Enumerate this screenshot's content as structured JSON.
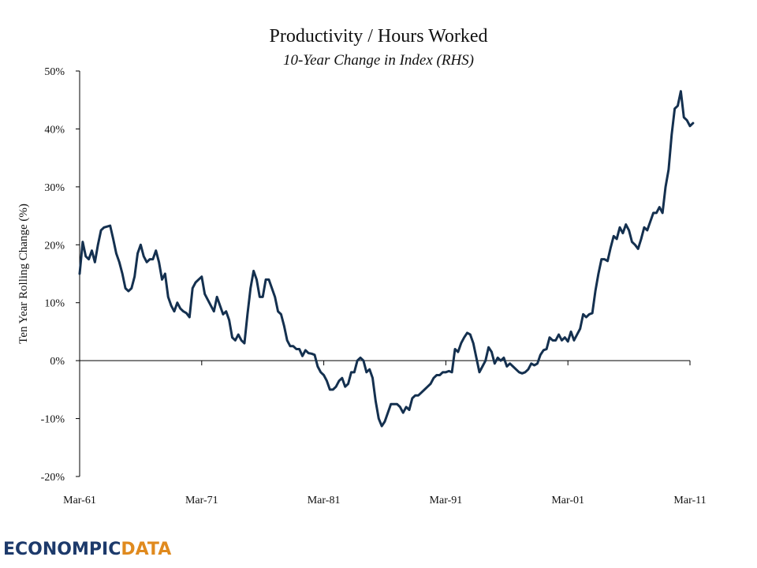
{
  "chart_data": {
    "type": "line",
    "title": "Productivity / Hours Worked",
    "subtitle": "10-Year Change in Index (RHS)",
    "ylabel": "Ten Year Rolling Change (%)",
    "xlabel": "",
    "ylim": [
      -20,
      50
    ],
    "yticks": [
      50,
      40,
      30,
      20,
      10,
      0,
      -10,
      -20
    ],
    "ytick_labels": [
      "50%",
      "40%",
      "30%",
      "20%",
      "10%",
      "0%",
      "-10%",
      "-20%"
    ],
    "xlim": [
      1961.0,
      2011.0
    ],
    "xticks": [
      1961,
      1971,
      1981,
      1991,
      2001,
      2011
    ],
    "xtick_labels": [
      "Mar-61",
      "Mar-71",
      "Mar-81",
      "Mar-91",
      "Mar-01",
      "Mar-11"
    ],
    "grid": false,
    "line_color": "#14304f",
    "series": [
      {
        "name": "",
        "points": [
          [
            1961.0,
            15.0
          ],
          [
            1961.25,
            20.5
          ],
          [
            1961.5,
            18.0
          ],
          [
            1961.75,
            17.5
          ],
          [
            1962.0,
            19.0
          ],
          [
            1962.25,
            17.0
          ],
          [
            1962.5,
            20.0
          ],
          [
            1962.75,
            22.5
          ],
          [
            1963.0,
            23.0
          ],
          [
            1963.5,
            23.3
          ],
          [
            1963.75,
            21.0
          ],
          [
            1964.0,
            18.5
          ],
          [
            1964.25,
            17.0
          ],
          [
            1964.5,
            15.0
          ],
          [
            1964.75,
            12.5
          ],
          [
            1965.0,
            12.0
          ],
          [
            1965.25,
            12.5
          ],
          [
            1965.5,
            14.5
          ],
          [
            1965.75,
            18.5
          ],
          [
            1966.0,
            20.0
          ],
          [
            1966.25,
            18.0
          ],
          [
            1966.5,
            17.0
          ],
          [
            1966.75,
            17.5
          ],
          [
            1967.0,
            17.5
          ],
          [
            1967.25,
            19.0
          ],
          [
            1967.5,
            17.0
          ],
          [
            1967.75,
            14.0
          ],
          [
            1968.0,
            15.0
          ],
          [
            1968.25,
            11.0
          ],
          [
            1968.5,
            9.5
          ],
          [
            1968.75,
            8.5
          ],
          [
            1969.0,
            10.0
          ],
          [
            1969.25,
            9.0
          ],
          [
            1969.5,
            8.5
          ],
          [
            1969.75,
            8.2
          ],
          [
            1970.0,
            7.5
          ],
          [
            1970.25,
            12.5
          ],
          [
            1970.5,
            13.5
          ],
          [
            1970.75,
            14.0
          ],
          [
            1971.0,
            14.5
          ],
          [
            1971.25,
            11.5
          ],
          [
            1971.5,
            10.5
          ],
          [
            1971.75,
            9.5
          ],
          [
            1972.0,
            8.5
          ],
          [
            1972.25,
            11.0
          ],
          [
            1972.5,
            9.5
          ],
          [
            1972.75,
            8.0
          ],
          [
            1973.0,
            8.5
          ],
          [
            1973.25,
            7.0
          ],
          [
            1973.5,
            4.0
          ],
          [
            1973.75,
            3.5
          ],
          [
            1974.0,
            4.5
          ],
          [
            1974.25,
            3.5
          ],
          [
            1974.5,
            3.0
          ],
          [
            1974.75,
            8.0
          ],
          [
            1975.0,
            12.5
          ],
          [
            1975.25,
            15.5
          ],
          [
            1975.5,
            14.0
          ],
          [
            1975.75,
            11.0
          ],
          [
            1976.0,
            11.0
          ],
          [
            1976.25,
            14.0
          ],
          [
            1976.5,
            14.0
          ],
          [
            1976.75,
            12.5
          ],
          [
            1977.0,
            11.0
          ],
          [
            1977.25,
            8.5
          ],
          [
            1977.5,
            8.0
          ],
          [
            1977.75,
            6.0
          ],
          [
            1978.0,
            3.5
          ],
          [
            1978.25,
            2.5
          ],
          [
            1978.5,
            2.5
          ],
          [
            1978.75,
            2.0
          ],
          [
            1979.0,
            2.0
          ],
          [
            1979.25,
            0.8
          ],
          [
            1979.5,
            1.8
          ],
          [
            1979.75,
            1.3
          ],
          [
            1980.0,
            1.2
          ],
          [
            1980.25,
            1.0
          ],
          [
            1980.5,
            -1.0
          ],
          [
            1980.75,
            -2.0
          ],
          [
            1981.0,
            -2.5
          ],
          [
            1981.25,
            -3.5
          ],
          [
            1981.5,
            -5.0
          ],
          [
            1981.75,
            -5.0
          ],
          [
            1982.0,
            -4.5
          ],
          [
            1982.25,
            -3.5
          ],
          [
            1982.5,
            -3.0
          ],
          [
            1982.75,
            -4.5
          ],
          [
            1983.0,
            -4.0
          ],
          [
            1983.25,
            -2.0
          ],
          [
            1983.5,
            -2.0
          ],
          [
            1983.75,
            0.0
          ],
          [
            1984.0,
            0.5
          ],
          [
            1984.25,
            0.0
          ],
          [
            1984.5,
            -2.0
          ],
          [
            1984.75,
            -1.5
          ],
          [
            1985.0,
            -3.0
          ],
          [
            1985.25,
            -7.0
          ],
          [
            1985.5,
            -10.0
          ],
          [
            1985.75,
            -11.3
          ],
          [
            1986.0,
            -10.5
          ],
          [
            1986.25,
            -9.0
          ],
          [
            1986.5,
            -7.5
          ],
          [
            1986.75,
            -7.5
          ],
          [
            1987.0,
            -7.5
          ],
          [
            1987.25,
            -8.0
          ],
          [
            1987.5,
            -9.0
          ],
          [
            1987.75,
            -8.0
          ],
          [
            1988.0,
            -8.5
          ],
          [
            1988.25,
            -6.5
          ],
          [
            1988.5,
            -6.0
          ],
          [
            1988.75,
            -6.0
          ],
          [
            1989.0,
            -5.5
          ],
          [
            1989.25,
            -5.0
          ],
          [
            1989.5,
            -4.5
          ],
          [
            1989.75,
            -4.0
          ],
          [
            1990.0,
            -3.0
          ],
          [
            1990.25,
            -2.5
          ],
          [
            1990.5,
            -2.5
          ],
          [
            1990.75,
            -2.0
          ],
          [
            1991.0,
            -2.0
          ],
          [
            1991.25,
            -1.8
          ],
          [
            1991.5,
            -2.0
          ],
          [
            1991.75,
            2.0
          ],
          [
            1992.0,
            1.5
          ],
          [
            1992.25,
            3.0
          ],
          [
            1992.5,
            4.0
          ],
          [
            1992.75,
            4.8
          ],
          [
            1993.0,
            4.5
          ],
          [
            1993.25,
            3.0
          ],
          [
            1993.5,
            0.5
          ],
          [
            1993.75,
            -2.0
          ],
          [
            1994.0,
            -1.0
          ],
          [
            1994.25,
            0.0
          ],
          [
            1994.5,
            2.3
          ],
          [
            1994.75,
            1.5
          ],
          [
            1995.0,
            -0.5
          ],
          [
            1995.25,
            0.5
          ],
          [
            1995.5,
            0.0
          ],
          [
            1995.75,
            0.5
          ],
          [
            1996.0,
            -1.0
          ],
          [
            1996.25,
            -0.5
          ],
          [
            1996.5,
            -1.0
          ],
          [
            1996.75,
            -1.5
          ],
          [
            1997.0,
            -2.0
          ],
          [
            1997.25,
            -2.2
          ],
          [
            1997.5,
            -2.0
          ],
          [
            1997.75,
            -1.5
          ],
          [
            1998.0,
            -0.5
          ],
          [
            1998.25,
            -0.8
          ],
          [
            1998.5,
            -0.5
          ],
          [
            1998.75,
            1.0
          ],
          [
            1999.0,
            1.8
          ],
          [
            1999.25,
            2.0
          ],
          [
            1999.5,
            4.0
          ],
          [
            1999.75,
            3.5
          ],
          [
            2000.0,
            3.5
          ],
          [
            2000.25,
            4.5
          ],
          [
            2000.5,
            3.5
          ],
          [
            2000.75,
            4.0
          ],
          [
            2001.0,
            3.3
          ],
          [
            2001.25,
            5.0
          ],
          [
            2001.5,
            3.5
          ],
          [
            2001.75,
            4.5
          ],
          [
            2002.0,
            5.5
          ],
          [
            2002.25,
            8.0
          ],
          [
            2002.5,
            7.5
          ],
          [
            2002.75,
            8.0
          ],
          [
            2003.0,
            8.2
          ],
          [
            2003.25,
            12.0
          ],
          [
            2003.5,
            15.0
          ],
          [
            2003.75,
            17.5
          ],
          [
            2004.0,
            17.5
          ],
          [
            2004.25,
            17.2
          ],
          [
            2004.5,
            19.5
          ],
          [
            2004.75,
            21.5
          ],
          [
            2005.0,
            21.0
          ],
          [
            2005.25,
            23.0
          ],
          [
            2005.5,
            22.0
          ],
          [
            2005.75,
            23.5
          ],
          [
            2006.0,
            22.5
          ],
          [
            2006.25,
            20.5
          ],
          [
            2006.5,
            20.0
          ],
          [
            2006.75,
            19.3
          ],
          [
            2007.0,
            21.0
          ],
          [
            2007.25,
            23.0
          ],
          [
            2007.5,
            22.5
          ],
          [
            2007.75,
            24.0
          ],
          [
            2008.0,
            25.5
          ],
          [
            2008.25,
            25.5
          ],
          [
            2008.5,
            26.5
          ],
          [
            2008.75,
            25.5
          ],
          [
            2009.0,
            30.0
          ],
          [
            2009.25,
            33.0
          ],
          [
            2009.5,
            39.0
          ],
          [
            2009.75,
            43.5
          ],
          [
            2010.0,
            44.0
          ],
          [
            2010.25,
            46.5
          ],
          [
            2010.5,
            42.0
          ],
          [
            2010.75,
            41.5
          ],
          [
            2011.0,
            40.5
          ],
          [
            2011.25,
            41.0
          ]
        ]
      }
    ]
  },
  "branding": {
    "logo_part1": "ECONOMPIC",
    "logo_part2": "DATA"
  }
}
